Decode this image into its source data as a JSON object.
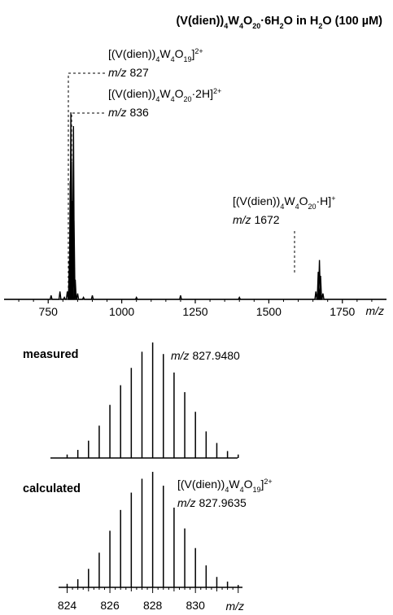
{
  "chart_data": [
    {
      "type": "line",
      "title": {
        "p1": "(V(dien))",
        "s1": "4",
        "p2": "W",
        "s2": "4",
        "p3": "O",
        "s3": "20",
        "p4": "·6H",
        "s4": "2",
        "p5": "O in H",
        "s5": "2",
        "p6": "O (100 µM)"
      },
      "xlabel": "m/z",
      "xlim": [
        600,
        1900
      ],
      "x_ticks": [
        750,
        1000,
        1250,
        1500,
        1750
      ],
      "grid": false,
      "series": [
        {
          "x": [
            760,
            790,
            805,
            815,
            822,
            825,
            827,
            829,
            832,
            836,
            838,
            842,
            850,
            870,
            900,
            1050,
            1200,
            1400,
            1660,
            1668,
            1672,
            1676,
            1684
          ],
          "y": [
            0.02,
            0.04,
            0.01,
            0.04,
            0.2,
            0.6,
            0.95,
            0.7,
            0.5,
            0.88,
            0.4,
            0.1,
            0.03,
            0.01,
            0.02,
            0.01,
            0.02,
            0.01,
            0.04,
            0.14,
            0.2,
            0.12,
            0.03
          ]
        }
      ],
      "annotations": [
        {
          "mz": "827",
          "f1": "[(V(dien))",
          "s1": "4",
          "f2": "W",
          "s2": "4",
          "f3": "O",
          "s3": "19",
          "f4": "]",
          "charge": "2+"
        },
        {
          "mz": "836",
          "f1": "[(V(dien))",
          "s1": "4",
          "f2": "W",
          "s2": "4",
          "f3": "O",
          "s3": "20",
          "f4": "·2H]",
          "charge": "2+"
        },
        {
          "mz": "1672",
          "f1": "[(V(dien))",
          "s1": "4",
          "f2": "W",
          "s2": "4",
          "f3": "O",
          "s3": "20",
          "f4": "·H]",
          "charge": "+"
        }
      ]
    },
    {
      "type": "bar",
      "label": "measured",
      "annotation": {
        "mz": "827.9480"
      },
      "x": [
        824.0,
        824.5,
        825.0,
        825.5,
        826.0,
        826.5,
        827.0,
        827.5,
        828.0,
        828.5,
        829.0,
        829.5,
        830.0,
        830.5,
        831.0,
        831.5,
        832.0
      ],
      "values": [
        0.03,
        0.07,
        0.15,
        0.28,
        0.46,
        0.63,
        0.78,
        0.92,
        1.0,
        0.9,
        0.74,
        0.57,
        0.4,
        0.23,
        0.13,
        0.06,
        0.03
      ]
    },
    {
      "type": "bar",
      "label": "calculated",
      "annotation": {
        "mz": "827.9635",
        "f1": "[(V(dien))",
        "s1": "4",
        "f2": "W",
        "s2": "4",
        "f3": "O",
        "s3": "19",
        "f4": "]",
        "charge": "2+"
      },
      "xlabel": "m/z",
      "xlim": [
        823.6,
        832.2
      ],
      "x_ticks": [
        824,
        826,
        828,
        830
      ],
      "x": [
        824.0,
        824.5,
        825.0,
        825.5,
        826.0,
        826.5,
        827.0,
        827.5,
        828.0,
        828.5,
        829.0,
        829.5,
        830.0,
        830.5,
        831.0,
        831.5,
        832.0
      ],
      "values": [
        0.03,
        0.07,
        0.16,
        0.3,
        0.49,
        0.67,
        0.82,
        0.94,
        1.0,
        0.88,
        0.69,
        0.51,
        0.34,
        0.19,
        0.09,
        0.05,
        0.02
      ]
    }
  ]
}
